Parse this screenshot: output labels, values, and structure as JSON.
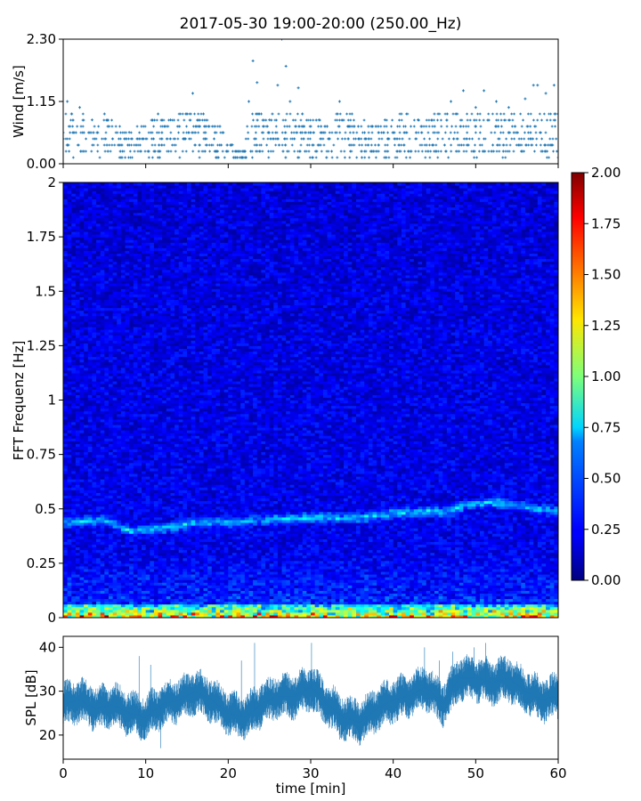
{
  "title": "2017-05-30 19:00-20:00 (250.00_Hz)",
  "chart_data": [
    {
      "type": "scatter",
      "panel": "wind",
      "ylabel": "Wind [m/s]",
      "ylim": [
        0,
        2.3
      ],
      "yticks": [
        "0.00",
        "1.15",
        "2.30"
      ],
      "xlim": [
        0,
        60
      ],
      "grid": false,
      "color": "#1f77b4",
      "quantization_step": 0.115,
      "points": [
        [
          0.5,
          1.15
        ],
        [
          1.0,
          0.92
        ],
        [
          2.0,
          1.04
        ],
        [
          3.5,
          0.81
        ],
        [
          5.0,
          0.92
        ],
        [
          8.0,
          0.58
        ],
        [
          9.5,
          0.69
        ],
        [
          11.5,
          0.92
        ],
        [
          13.0,
          0.81
        ],
        [
          15.7,
          1.3
        ],
        [
          17.0,
          0.92
        ],
        [
          19.0,
          0.69
        ],
        [
          20.5,
          0.35
        ],
        [
          22.0,
          0.23
        ],
        [
          22.5,
          1.15
        ],
        [
          23.0,
          1.9
        ],
        [
          23.5,
          1.5
        ],
        [
          24.0,
          0.92
        ],
        [
          25.0,
          0.81
        ],
        [
          26.0,
          1.45
        ],
        [
          26.5,
          2.3
        ],
        [
          27.0,
          1.8
        ],
        [
          27.5,
          1.15
        ],
        [
          28.5,
          1.4
        ],
        [
          29.0,
          0.92
        ],
        [
          31.0,
          0.81
        ],
        [
          32.0,
          0.69
        ],
        [
          33.5,
          1.15
        ],
        [
          35.0,
          0.92
        ],
        [
          37.0,
          0.69
        ],
        [
          39.0,
          0.81
        ],
        [
          41.0,
          0.92
        ],
        [
          43.0,
          0.81
        ],
        [
          45.0,
          0.92
        ],
        [
          47.0,
          1.15
        ],
        [
          48.5,
          1.35
        ],
        [
          50.0,
          1.04
        ],
        [
          51.0,
          1.35
        ],
        [
          52.5,
          1.15
        ],
        [
          54.0,
          1.04
        ],
        [
          56.0,
          1.2
        ],
        [
          57.0,
          1.45
        ],
        [
          57.5,
          1.45
        ],
        [
          58.5,
          1.3
        ],
        [
          59.5,
          1.45
        ]
      ]
    },
    {
      "type": "heatmap",
      "panel": "spectrogram",
      "ylabel": "FFT Frequenz [Hz]",
      "ylim": [
        0,
        2
      ],
      "yticks": [
        "0",
        "0.25",
        "0.5",
        "0.75",
        "1",
        "1.25",
        "1.5",
        "1.75",
        "2"
      ],
      "xlim": [
        0,
        60
      ],
      "colormap": "jet",
      "colorbar": {
        "range": [
          0,
          2
        ],
        "ticks": [
          "0.00",
          "0.25",
          "0.50",
          "0.75",
          "1.00",
          "1.25",
          "1.50",
          "1.75",
          "2.00"
        ]
      },
      "features": {
        "background_level": 0.22,
        "low_freq_band": {
          "freq_max": 0.06,
          "level": 1.3
        },
        "ridge": [
          [
            0,
            0.44
          ],
          [
            5,
            0.45
          ],
          [
            8,
            0.4
          ],
          [
            12,
            0.41
          ],
          [
            16,
            0.44
          ],
          [
            20,
            0.44
          ],
          [
            24,
            0.45
          ],
          [
            28,
            0.46
          ],
          [
            32,
            0.46
          ],
          [
            36,
            0.46
          ],
          [
            40,
            0.48
          ],
          [
            44,
            0.49
          ],
          [
            47,
            0.49
          ],
          [
            49,
            0.52
          ],
          [
            52,
            0.53
          ],
          [
            55,
            0.52
          ],
          [
            58,
            0.5
          ],
          [
            60,
            0.49
          ]
        ]
      }
    },
    {
      "type": "line",
      "panel": "spl",
      "ylabel": "SPL [dB]",
      "xlabel": "time [min]",
      "ylim": [
        14.5,
        42.5
      ],
      "yticks": [
        "20",
        "30",
        "40"
      ],
      "xlim": [
        0,
        60
      ],
      "xticks": [
        "0",
        "10",
        "20",
        "30",
        "40",
        "50",
        "60"
      ],
      "color": "#1f77b4",
      "x": [
        0,
        2,
        4,
        6,
        8,
        10,
        12,
        14,
        16,
        18,
        20,
        22,
        24,
        26,
        28,
        30,
        32,
        34,
        36,
        38,
        40,
        42,
        44,
        46,
        48,
        50,
        52,
        54,
        56,
        58,
        60
      ],
      "y": [
        27,
        28,
        26,
        27,
        25,
        24,
        27,
        28,
        30,
        28,
        25,
        24,
        27,
        29,
        29,
        31,
        27,
        24,
        23,
        26,
        28,
        29,
        31,
        27,
        33,
        33,
        32,
        33,
        30,
        28,
        29
      ]
    }
  ]
}
